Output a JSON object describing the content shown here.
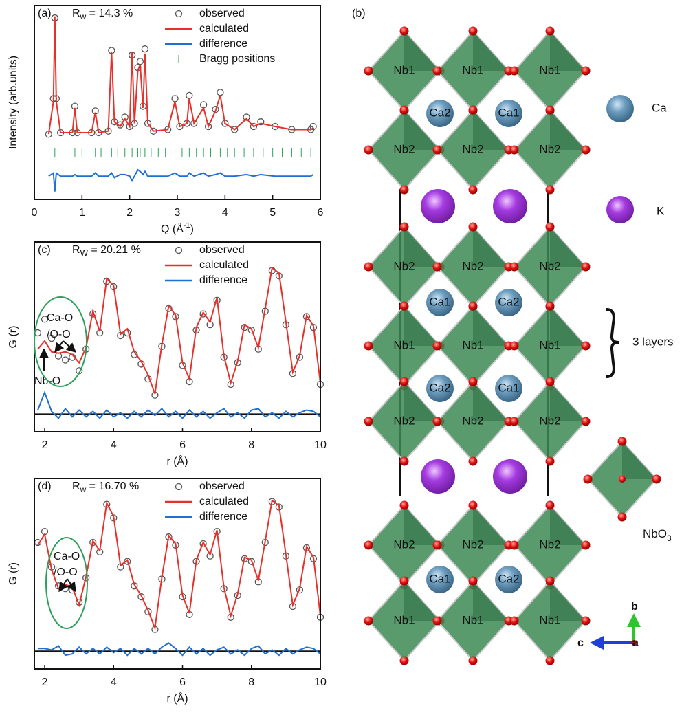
{
  "chart_data": [
    {
      "type": "line",
      "panel_label": "(a)",
      "rw": {
        "main": "R",
        "sub": "w",
        "rest": " = 14.3 %"
      },
      "xlabel": {
        "main": "Q (Å",
        "sup": "-1",
        "end": ")"
      },
      "ylabel": "Intensity (arb.units)",
      "xlim": [
        0,
        6
      ],
      "xticks": [
        0,
        1,
        2,
        3,
        4,
        5,
        6
      ],
      "ylim": [
        -25,
        100
      ],
      "x": [
        0.3,
        0.4,
        0.43,
        0.46,
        0.55,
        0.8,
        0.85,
        0.9,
        1.2,
        1.28,
        1.35,
        1.55,
        1.62,
        1.68,
        1.8,
        1.9,
        2.0,
        2.05,
        2.1,
        2.17,
        2.22,
        2.28,
        2.32,
        2.38,
        2.5,
        2.8,
        2.95,
        3.05,
        3.2,
        3.25,
        3.35,
        3.55,
        3.65,
        3.8,
        3.9,
        4.0,
        4.2,
        4.45,
        4.6,
        4.75,
        5.05,
        5.4,
        5.8,
        5.85
      ],
      "series": [
        {
          "name": "observed",
          "color": "#555555",
          "marker": "circle",
          "values": [
            17,
            40,
            92,
            40,
            18,
            18,
            35,
            18,
            18,
            32,
            18,
            19,
            71,
            25,
            23,
            28,
            22,
            68,
            24,
            60,
            64,
            35,
            72,
            24,
            19,
            20,
            40,
            22,
            24,
            42,
            24,
            36,
            22,
            33,
            44,
            24,
            20,
            28,
            22,
            25,
            22,
            20,
            20,
            22
          ]
        },
        {
          "name": "calculated",
          "color": "#e8302a",
          "marker": "line",
          "values": [
            17,
            38,
            93,
            38,
            18,
            18,
            34,
            18,
            18,
            31,
            18,
            19,
            70,
            25,
            22,
            27,
            22,
            70,
            24,
            58,
            62,
            34,
            69,
            24,
            19,
            20,
            38,
            22,
            24,
            40,
            24,
            34,
            22,
            32,
            42,
            24,
            20,
            27,
            22,
            24,
            22,
            20,
            20,
            21
          ]
        },
        {
          "name": "difference",
          "color": "#1f6fd6",
          "marker": "line",
          "values": [
            -10,
            -8,
            -20,
            -8,
            -10,
            -10,
            -9,
            -10,
            -10,
            -8,
            -10,
            -10,
            -8,
            -11,
            -9,
            -9,
            -10,
            -13,
            -10,
            -6,
            -7,
            -9,
            -7,
            -10,
            -10,
            -10,
            -8,
            -10,
            -10,
            -8,
            -10,
            -8,
            -10,
            -9,
            -8,
            -10,
            -10,
            -9,
            -10,
            -9,
            -10,
            -10,
            -10,
            -9
          ]
        }
      ],
      "bragg": {
        "name": "Bragg positions",
        "color": "#2ca05a",
        "x": [
          0.43,
          0.85,
          1.0,
          1.28,
          1.4,
          1.62,
          1.75,
          1.9,
          2.05,
          2.17,
          2.22,
          2.32,
          2.45,
          2.6,
          2.75,
          2.95,
          3.1,
          3.25,
          3.4,
          3.55,
          3.7,
          3.9,
          4.05,
          4.2,
          4.4,
          4.6,
          4.8,
          5.0,
          5.2,
          5.4,
          5.6,
          5.8
        ]
      },
      "annotations": []
    },
    {
      "type": "line",
      "panel_label": "(c)",
      "rw": {
        "main": "R",
        "sub": "W",
        "rest": " =  20.21 %"
      },
      "xlabel": {
        "main": "r (Å)"
      },
      "ylabel": "G (r)",
      "xlim": [
        1.7,
        10
      ],
      "xticks": [
        2,
        4,
        6,
        8,
        10
      ],
      "ylim": [
        -1.3,
        12.7
      ],
      "x": [
        1.8,
        2.0,
        2.2,
        2.4,
        2.6,
        2.8,
        3.0,
        3.2,
        3.4,
        3.6,
        3.8,
        4.0,
        4.2,
        4.4,
        4.6,
        4.8,
        5.0,
        5.2,
        5.4,
        5.6,
        5.8,
        6.0,
        6.2,
        6.4,
        6.6,
        6.8,
        7.0,
        7.2,
        7.4,
        7.6,
        7.8,
        8.0,
        8.2,
        8.4,
        8.6,
        8.8,
        9.0,
        9.2,
        9.4,
        9.6,
        9.8,
        10.0
      ],
      "series": [
        {
          "name": "observed",
          "color": "#555555",
          "marker": "circle",
          "values": [
            6.0,
            7.0,
            5.6,
            4.3,
            4.0,
            4.2,
            3.2,
            4.8,
            7.4,
            6.0,
            9.8,
            9.4,
            5.8,
            6.0,
            4.4,
            3.7,
            2.6,
            1.4,
            5.0,
            7.8,
            7.2,
            3.6,
            2.4,
            6.2,
            7.4,
            6.6,
            8.4,
            4.2,
            2.2,
            3.8,
            6.4,
            6.2,
            4.8,
            7.6,
            10.6,
            10.2,
            6.6,
            3.0,
            4.2,
            7.2,
            6.4,
            2.2
          ]
        },
        {
          "name": "calculated",
          "color": "#e8302a",
          "marker": "line",
          "values": [
            4.8,
            5.4,
            4.6,
            4.5,
            4.6,
            4.4,
            3.8,
            4.9,
            7.6,
            6.1,
            10.0,
            9.5,
            5.9,
            6.3,
            4.6,
            3.9,
            2.9,
            1.5,
            5.1,
            8.0,
            7.3,
            3.8,
            2.6,
            6.4,
            7.5,
            6.8,
            8.6,
            4.3,
            2.3,
            3.9,
            6.6,
            6.3,
            4.9,
            7.8,
            10.8,
            10.4,
            6.8,
            3.1,
            4.3,
            7.3,
            6.5,
            2.3
          ]
        },
        {
          "name": "difference",
          "color": "#1f6fd6",
          "marker": "line",
          "values": [
            0.3,
            1.6,
            0.2,
            -0.3,
            0.4,
            -0.2,
            0.3,
            -0.2,
            0.2,
            -0.3,
            0.3,
            -0.2,
            0.1,
            -0.3,
            0.2,
            -0.2,
            0.3,
            -0.1,
            0.4,
            -0.2,
            0.2,
            -0.3,
            0.3,
            -0.2,
            0.2,
            -0.3,
            0.1,
            0.4,
            -0.2,
            0.1,
            -0.3,
            0.3,
            0.4,
            -0.2,
            0.1,
            -0.3,
            0.2,
            -0.2,
            0.1,
            0.3,
            0.2,
            -0.2
          ]
        }
      ],
      "annotations": [
        "Ca-O",
        "/O-O",
        "Nb-O"
      ]
    },
    {
      "type": "line",
      "panel_label": "(d)",
      "rw": {
        "main": "R",
        "sub": "w",
        "rest": " = 16.70 %"
      },
      "xlabel": {
        "main": "r (Å)"
      },
      "ylabel": "G (r)",
      "xlim": [
        1.7,
        10
      ],
      "xticks": [
        2,
        4,
        6,
        8,
        10
      ],
      "ylim": [
        -1.3,
        12.7
      ],
      "x": [
        1.8,
        2.0,
        2.2,
        2.4,
        2.6,
        2.8,
        3.0,
        3.2,
        3.4,
        3.6,
        3.8,
        4.0,
        4.2,
        4.4,
        4.6,
        4.8,
        5.0,
        5.2,
        5.4,
        5.6,
        5.8,
        6.0,
        6.2,
        6.4,
        6.6,
        6.8,
        7.0,
        7.2,
        7.4,
        7.6,
        7.8,
        8.0,
        8.2,
        8.4,
        8.6,
        8.8,
        9.0,
        9.2,
        9.4,
        9.6,
        9.8,
        10.0
      ],
      "series": [
        {
          "name": "observed",
          "color": "#555555",
          "marker": "circle",
          "values": [
            8.0,
            8.8,
            6.2,
            4.8,
            4.6,
            4.5,
            3.6,
            5.4,
            8.0,
            7.3,
            10.8,
            9.8,
            6.2,
            6.6,
            4.8,
            4.0,
            2.9,
            1.6,
            5.3,
            8.4,
            7.8,
            4.0,
            2.7,
            6.6,
            7.9,
            7.0,
            8.8,
            4.6,
            2.5,
            4.1,
            6.8,
            6.6,
            5.1,
            8.0,
            11.0,
            10.6,
            7.0,
            3.3,
            4.5,
            7.6,
            6.8,
            2.5
          ]
        },
        {
          "name": "calculated",
          "color": "#e8302a",
          "marker": "line",
          "values": [
            7.8,
            8.6,
            6.0,
            4.6,
            4.9,
            4.7,
            3.4,
            5.5,
            8.1,
            7.4,
            10.9,
            9.9,
            6.3,
            6.7,
            4.9,
            4.1,
            3.0,
            1.7,
            5.4,
            8.5,
            7.9,
            4.1,
            2.8,
            6.7,
            8.0,
            7.1,
            8.9,
            4.7,
            2.6,
            4.2,
            6.9,
            6.7,
            5.2,
            8.1,
            11.1,
            10.7,
            7.1,
            3.4,
            4.6,
            7.7,
            6.9,
            2.6
          ]
        },
        {
          "name": "difference",
          "color": "#1f6fd6",
          "marker": "line",
          "values": [
            0.2,
            0.2,
            0.1,
            0.4,
            -0.3,
            -0.2,
            0.3,
            -0.2,
            0.2,
            -0.2,
            0.3,
            -0.1,
            0.2,
            -0.3,
            0.2,
            -0.2,
            0.2,
            -0.2,
            0.3,
            0.6,
            0.2,
            -0.3,
            0.3,
            -0.2,
            0.2,
            -0.3,
            0.1,
            0.3,
            -0.2,
            0.1,
            -0.3,
            0.2,
            0.4,
            -0.2,
            0.1,
            -0.3,
            0.2,
            -0.2,
            0.1,
            0.3,
            0.2,
            -0.2
          ]
        }
      ],
      "annotations": [
        "Ca-O",
        "/O-O"
      ]
    }
  ],
  "structure": {
    "panel_label": "(b)",
    "site_labels": [
      "Nb1",
      "Nb1",
      "Nb1",
      "Ca2",
      "Ca1",
      "Nb2",
      "Nb2",
      "Nb2",
      "Nb2",
      "Nb2",
      "Nb2",
      "Ca1",
      "Ca2",
      "Nb1",
      "Nb1",
      "Nb1",
      "Ca2",
      "Ca1",
      "Nb2",
      "Nb2",
      "Nb2",
      "Nb2",
      "Nb2",
      "Nb2",
      "Ca1",
      "Ca2",
      "Nb1",
      "Nb1",
      "Nb1"
    ],
    "legend": {
      "ca": "Ca",
      "k": "K",
      "nbo": {
        "main": "NbO",
        "sub": "3"
      }
    },
    "layers": "3 layers",
    "axes": {
      "b": "b",
      "c": "c",
      "a": "a"
    }
  }
}
